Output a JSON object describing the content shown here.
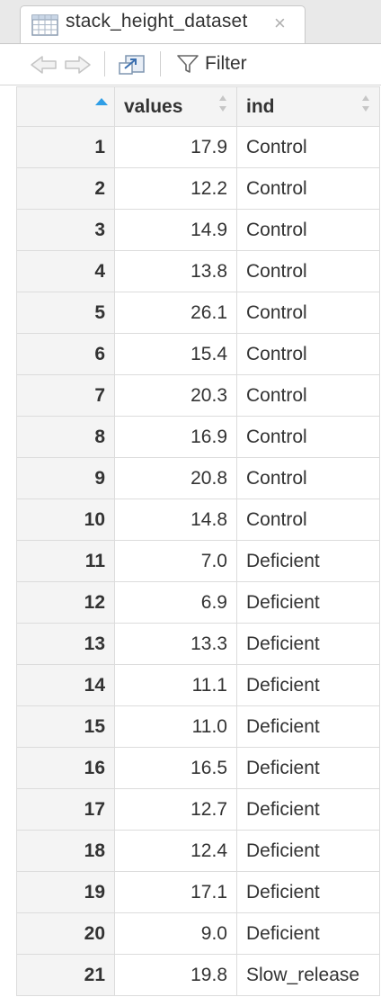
{
  "tab": {
    "title": "stack_height_dataset",
    "close_glyph": "×",
    "icon": "table-grid-icon"
  },
  "toolbar": {
    "back_icon": "back-arrow-icon",
    "forward_icon": "forward-arrow-icon",
    "popout_icon": "popout-window-icon",
    "filter_icon": "funnel-icon",
    "filter_label": "Filter"
  },
  "table": {
    "columns": [
      {
        "label": "",
        "sort": "ascending"
      },
      {
        "label": "values",
        "sort": "none"
      },
      {
        "label": "ind",
        "sort": "none"
      }
    ],
    "rows": [
      {
        "n": "1",
        "values": "17.9",
        "ind": "Control"
      },
      {
        "n": "2",
        "values": "12.2",
        "ind": "Control"
      },
      {
        "n": "3",
        "values": "14.9",
        "ind": "Control"
      },
      {
        "n": "4",
        "values": "13.8",
        "ind": "Control"
      },
      {
        "n": "5",
        "values": "26.1",
        "ind": "Control"
      },
      {
        "n": "6",
        "values": "15.4",
        "ind": "Control"
      },
      {
        "n": "7",
        "values": "20.3",
        "ind": "Control"
      },
      {
        "n": "8",
        "values": "16.9",
        "ind": "Control"
      },
      {
        "n": "9",
        "values": "20.8",
        "ind": "Control"
      },
      {
        "n": "10",
        "values": "14.8",
        "ind": "Control"
      },
      {
        "n": "11",
        "values": "7.0",
        "ind": "Deficient"
      },
      {
        "n": "12",
        "values": "6.9",
        "ind": "Deficient"
      },
      {
        "n": "13",
        "values": "13.3",
        "ind": "Deficient"
      },
      {
        "n": "14",
        "values": "11.1",
        "ind": "Deficient"
      },
      {
        "n": "15",
        "values": "11.0",
        "ind": "Deficient"
      },
      {
        "n": "16",
        "values": "16.5",
        "ind": "Deficient"
      },
      {
        "n": "17",
        "values": "12.7",
        "ind": "Deficient"
      },
      {
        "n": "18",
        "values": "12.4",
        "ind": "Deficient"
      },
      {
        "n": "19",
        "values": "17.1",
        "ind": "Deficient"
      },
      {
        "n": "20",
        "values": "9.0",
        "ind": "Deficient"
      },
      {
        "n": "21",
        "values": "19.8",
        "ind": "Slow_release"
      }
    ]
  },
  "colors": {
    "sort_active": "#2f9ee6",
    "header_bg": "#f4f4f4",
    "grid_line": "#dcdcdc"
  }
}
